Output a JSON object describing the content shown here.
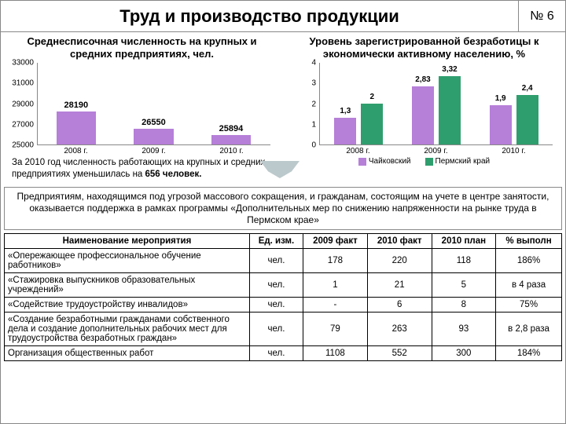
{
  "header": {
    "title": "Труд и производство продукции",
    "page_num": "№ 6"
  },
  "chart1": {
    "title": "Среднесписочная численность на крупных и средних предприятиях, чел.",
    "type": "bar",
    "ylim": [
      25000,
      33000
    ],
    "yticks": [
      25000,
      27000,
      29000,
      31000,
      33000
    ],
    "categories": [
      "2008 г.",
      "2009 г.",
      "2010 г."
    ],
    "values": [
      28190,
      26550,
      25894
    ],
    "bar_color": "#b67fd8",
    "note_prefix": "За 2010 год численность работающих на крупных и средних предприятиях уменьшилась на ",
    "note_bold": "656 человек."
  },
  "chart2": {
    "title": "Уровень зарегистрированной безработицы к экономически активному населению, %",
    "type": "grouped-bar",
    "ylim": [
      0,
      4
    ],
    "yticks": [
      0,
      1,
      2,
      3,
      4
    ],
    "categories": [
      "2008 г.",
      "2009 г.",
      "2010 г."
    ],
    "series": [
      {
        "name": "Чайковский",
        "color": "#b67fd8",
        "values": [
          1.3,
          2.83,
          1.9
        ]
      },
      {
        "name": "Пермский край",
        "color": "#2f9e6e",
        "values": [
          2,
          3.32,
          2.4
        ]
      }
    ],
    "labels": [
      [
        "1,3",
        "2"
      ],
      [
        "2,83",
        "3,32"
      ],
      [
        "1,9",
        "2,4"
      ]
    ]
  },
  "program_text": "Предприятиям, находящимся под угрозой массового сокращения, и гражданам, состоящим на учете в центре занятости, оказывается поддержка в рамках программы «Дополнительных мер по снижению напряженности на рынке труда в Пермском крае»",
  "table": {
    "columns": [
      "Наименование мероприятия",
      "Ед. изм.",
      "2009 факт",
      "2010 факт",
      "2010 план",
      "% выполн"
    ],
    "rows": [
      [
        "«Опережающее профессиональное обучение работников»",
        "чел.",
        "178",
        "220",
        "118",
        "186%"
      ],
      [
        "«Стажировка выпускников образовательных учреждений»",
        "чел.",
        "1",
        "21",
        "5",
        "в 4 раза"
      ],
      [
        "«Содействие трудоустройству инвалидов»",
        "чел.",
        "-",
        "6",
        "8",
        "75%"
      ],
      [
        "«Создание безработными гражданами собственного дела и создание дополнительных рабочих мест для трудоустройства безработных граждан»",
        "чел.",
        "79",
        "263",
        "93",
        "в 2,8 раза"
      ],
      [
        "Организация общественных работ",
        "чел.",
        "1108",
        "552",
        "300",
        "184%"
      ]
    ]
  }
}
